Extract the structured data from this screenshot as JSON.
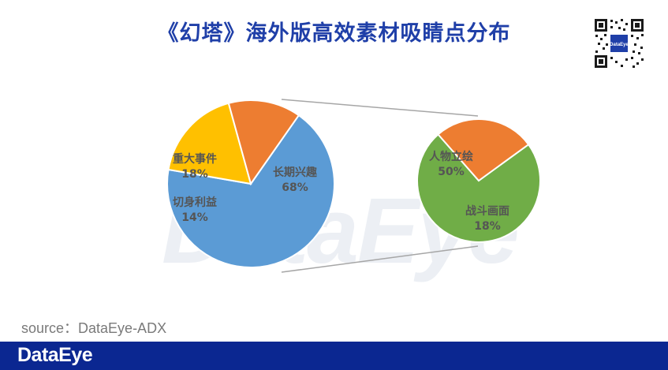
{
  "title": "《幻塔》海外版高效素材吸睛点分布",
  "watermark": "DataEye",
  "source": "source：DataEye-ADX",
  "footer_logo": "DataEye",
  "qr_label": "DataEye",
  "chart_data": [
    {
      "type": "pie",
      "categories": [
        "长期兴趣",
        "重大事件",
        "切身利益"
      ],
      "values": [
        68,
        18,
        14
      ],
      "colors": [
        "#5b9bd5",
        "#ffc000",
        "#ed7d31"
      ],
      "labels": [
        "68%",
        "18%",
        "14%"
      ]
    },
    {
      "type": "pie",
      "categories": [
        "人物立绘",
        "战斗画面"
      ],
      "values": [
        50,
        18
      ],
      "colors": [
        "#70ad47",
        "#ed7d31"
      ],
      "labels": [
        "50%",
        "18%"
      ]
    }
  ]
}
